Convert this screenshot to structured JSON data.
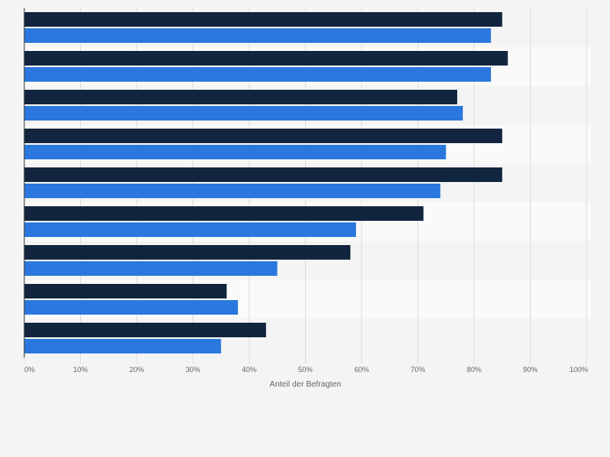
{
  "chart_data": {
    "type": "bar",
    "orientation": "horizontal",
    "title": "",
    "xlabel": "Anteil der Befragten",
    "ylabel": "",
    "xlim": [
      0,
      100
    ],
    "x_ticks": [
      "0%",
      "10%",
      "20%",
      "30%",
      "40%",
      "50%",
      "60%",
      "70%",
      "80%",
      "90%",
      "100%"
    ],
    "categories": [
      "",
      "",
      "",
      "",
      "",
      "",
      "",
      "",
      ""
    ],
    "series": [
      {
        "color": "#12253f",
        "values": [
          85,
          86,
          77,
          85,
          85,
          71,
          58,
          36,
          43
        ]
      },
      {
        "color": "#2a78dd",
        "values": [
          83,
          83,
          78,
          75,
          74,
          59,
          45,
          38,
          35
        ]
      }
    ],
    "grid": true,
    "legend": "none",
    "colors": {
      "background": "#f4f4f4",
      "band_light": "#fafafa",
      "band_dark": "#f4f4f4",
      "gridline": "#dddddd",
      "axis": "#333333",
      "tick_text": "#666666"
    }
  }
}
